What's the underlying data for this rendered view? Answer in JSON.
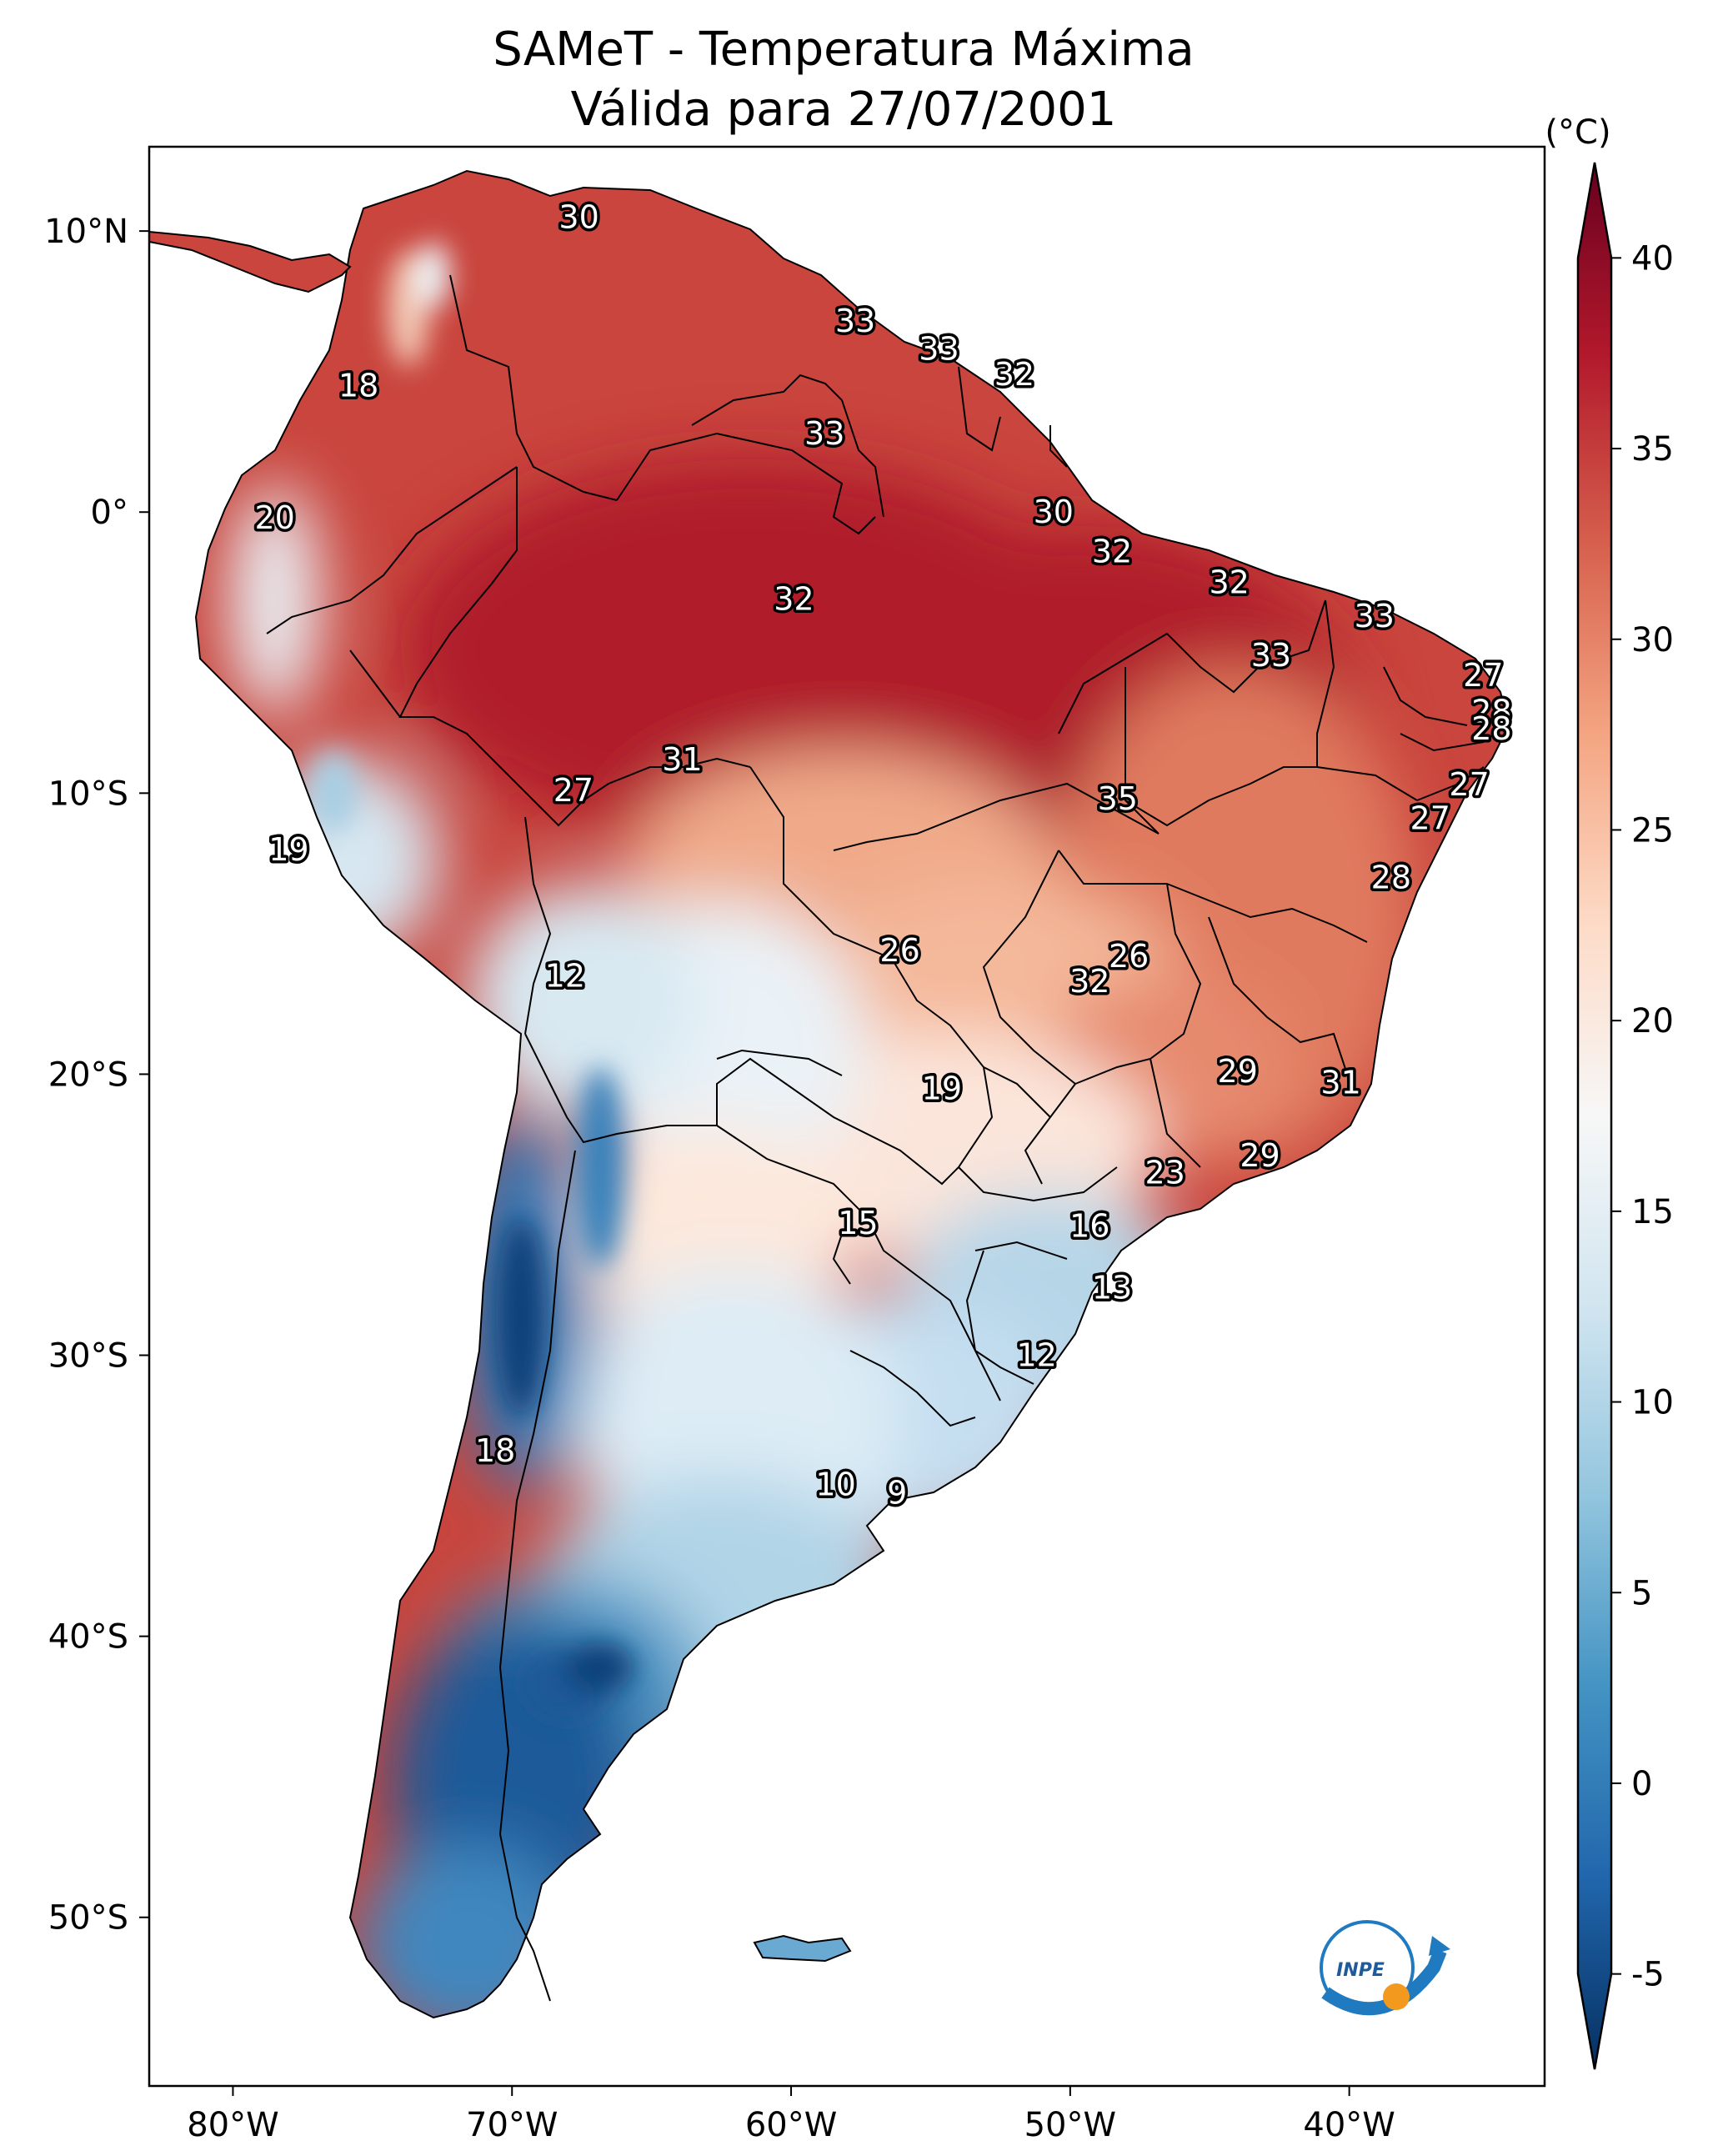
{
  "title": {
    "line1": "SAMeT - Temperatura Máxima",
    "line2": "Válida para 27/07/2001"
  },
  "colorbar": {
    "unit": "(°C)",
    "min": -7.5,
    "max": 42.5,
    "ticks": [
      "40",
      "35",
      "30",
      "25",
      "20",
      "15",
      "10",
      "5",
      "0",
      "-5"
    ],
    "tick_values": [
      40,
      35,
      30,
      25,
      20,
      15,
      10,
      5,
      0,
      -5
    ],
    "colors": [
      "#053061",
      "#2166ac",
      "#4393c3",
      "#92c5de",
      "#d1e5f0",
      "#f7f7f7",
      "#fddbc7",
      "#f4a582",
      "#d6604d",
      "#b2182b",
      "#67001f"
    ]
  },
  "axes": {
    "lon_labels": [
      "80°W",
      "70°W",
      "60°W",
      "50°W",
      "40°W"
    ],
    "lon_values": [
      -80,
      -70,
      -60,
      -50,
      -40
    ],
    "lat_labels": [
      "10°N",
      "0°",
      "10°S",
      "20°S",
      "30°S",
      "40°S",
      "50°S"
    ],
    "lat_values": [
      10,
      0,
      -10,
      -20,
      -30,
      -40,
      -50
    ],
    "extent": {
      "lon_min": -83,
      "lon_max": -33,
      "lat_min": -56,
      "lat_max": 13
    }
  },
  "logo": {
    "text": "INPE",
    "icon": "inpe-logo"
  },
  "chart_data": {
    "type": "heatmap",
    "title": "SAMeT - Temperatura Máxima — Válida para 27/07/2001",
    "variable": "Temperatura Máxima",
    "unit": "°C",
    "city_labels": [
      {
        "label": "30",
        "lon": -67.6,
        "lat": 10.5
      },
      {
        "label": "18",
        "lon": -75.5,
        "lat": 4.5
      },
      {
        "label": "33",
        "lon": -57.7,
        "lat": 6.8
      },
      {
        "label": "33",
        "lon": -54.7,
        "lat": 5.8
      },
      {
        "label": "32",
        "lon": -52.0,
        "lat": 4.9
      },
      {
        "label": "33",
        "lon": -58.8,
        "lat": 2.8
      },
      {
        "label": "20",
        "lon": -78.5,
        "lat": -0.2
      },
      {
        "label": "30",
        "lon": -50.6,
        "lat": 0.0
      },
      {
        "label": "32",
        "lon": -48.5,
        "lat": -1.4
      },
      {
        "label": "32",
        "lon": -44.3,
        "lat": -2.5
      },
      {
        "label": "33",
        "lon": -39.1,
        "lat": -3.7
      },
      {
        "label": "32",
        "lon": -59.9,
        "lat": -3.1
      },
      {
        "label": "33",
        "lon": -42.8,
        "lat": -5.1
      },
      {
        "label": "27",
        "lon": -35.2,
        "lat": -5.8
      },
      {
        "label": "28",
        "lon": -34.9,
        "lat": -7.1
      },
      {
        "label": "28",
        "lon": -34.9,
        "lat": -7.7
      },
      {
        "label": "31",
        "lon": -63.9,
        "lat": -8.8
      },
      {
        "label": "27",
        "lon": -67.8,
        "lat": -9.9
      },
      {
        "label": "35",
        "lon": -48.3,
        "lat": -10.2
      },
      {
        "label": "27",
        "lon": -35.7,
        "lat": -9.7
      },
      {
        "label": "27",
        "lon": -37.1,
        "lat": -10.9
      },
      {
        "label": "19",
        "lon": -78.0,
        "lat": -12.0
      },
      {
        "label": "28",
        "lon": -38.5,
        "lat": -13.0
      },
      {
        "label": "26",
        "lon": -56.1,
        "lat": -15.6
      },
      {
        "label": "26",
        "lon": -47.9,
        "lat": -15.8
      },
      {
        "label": "12",
        "lon": -68.1,
        "lat": -16.5
      },
      {
        "label": "32",
        "lon": -49.3,
        "lat": -16.7
      },
      {
        "label": "19",
        "lon": -54.6,
        "lat": -20.5
      },
      {
        "label": "29",
        "lon": -44.0,
        "lat": -19.9
      },
      {
        "label": "31",
        "lon": -40.3,
        "lat": -20.3
      },
      {
        "label": "29",
        "lon": -43.2,
        "lat": -22.9
      },
      {
        "label": "23",
        "lon": -46.6,
        "lat": -23.5
      },
      {
        "label": "15",
        "lon": -57.6,
        "lat": -25.3
      },
      {
        "label": "16",
        "lon": -49.3,
        "lat": -25.4
      },
      {
        "label": "13",
        "lon": -48.5,
        "lat": -27.6
      },
      {
        "label": "12",
        "lon": -51.2,
        "lat": -30.0
      },
      {
        "label": "18",
        "lon": -70.6,
        "lat": -33.4
      },
      {
        "label": "10",
        "lon": -58.4,
        "lat": -34.6
      },
      {
        "label": "9",
        "lon": -56.2,
        "lat": -34.9
      }
    ]
  }
}
